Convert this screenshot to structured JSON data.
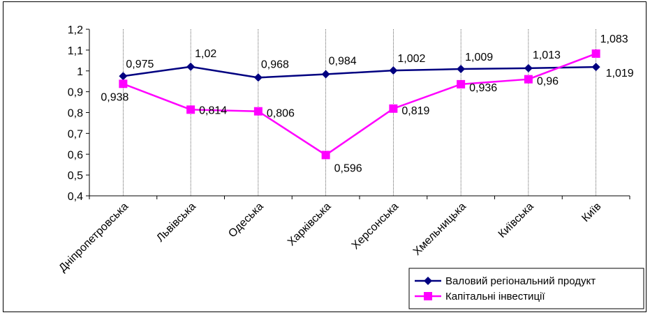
{
  "chart_data": {
    "type": "line",
    "title": "",
    "xlabel": "",
    "ylabel": "",
    "categories": [
      "Дніпропетровська",
      "Львівська",
      "Одеська",
      "Харківська",
      "Херсонська",
      "Хмельницька",
      "Київська",
      "Київ"
    ],
    "ylim": [
      0.4,
      1.2
    ],
    "yticks": [
      0.4,
      0.5,
      0.6,
      0.7,
      0.8,
      0.9,
      1.0,
      1.1,
      1.2
    ],
    "ytick_labels": [
      "0,4",
      "0,5",
      "0,6",
      "0,7",
      "0,8",
      "0,9",
      "1",
      "1,1",
      "1,2"
    ],
    "grid": "vertical",
    "legend_position": "bottom-right",
    "series": [
      {
        "name": "Валовий регіональний продукт",
        "color": "#000080",
        "marker": "diamond",
        "values": [
          0.975,
          1.02,
          0.968,
          0.984,
          1.002,
          1.009,
          1.013,
          1.019
        ],
        "labels": [
          "0,975",
          "1,02",
          "0,968",
          "0,984",
          "1,002",
          "1,009",
          "1,013",
          "1,019"
        ]
      },
      {
        "name": "Капітальні інвестиції",
        "color": "#FF00FF",
        "marker": "square",
        "values": [
          0.938,
          0.814,
          0.806,
          0.596,
          0.819,
          0.936,
          0.96,
          1.083
        ],
        "labels": [
          "0,938",
          "0,814",
          "0,806",
          "0,596",
          "0,819",
          "0,936",
          "0,96",
          "1,083"
        ]
      }
    ]
  }
}
